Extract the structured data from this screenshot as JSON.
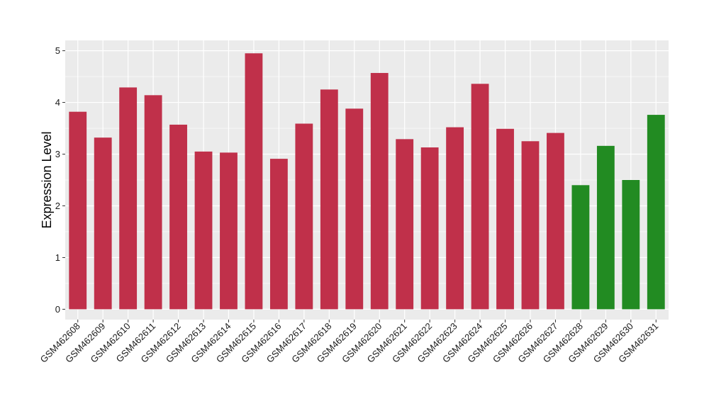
{
  "chart_data": {
    "type": "bar",
    "title": "",
    "xlabel": "",
    "ylabel": "Expression Level",
    "ylim": [
      -0.2,
      5.2
    ],
    "yticks": [
      0,
      1,
      2,
      3,
      4,
      5
    ],
    "grid": true,
    "legend": "none",
    "colors": {
      "group1": "#c0304a",
      "group2": "#228b22",
      "panel": "#ebebeb",
      "grid": "#ffffff"
    },
    "categories": [
      "GSM462608",
      "GSM462609",
      "GSM462610",
      "GSM462611",
      "GSM462612",
      "GSM462613",
      "GSM462614",
      "GSM462615",
      "GSM462616",
      "GSM462617",
      "GSM462618",
      "GSM462619",
      "GSM462620",
      "GSM462621",
      "GSM462622",
      "GSM462623",
      "GSM462624",
      "GSM462625",
      "GSM462626",
      "GSM462627",
      "GSM462628",
      "GSM462629",
      "GSM462630",
      "GSM462631"
    ],
    "values": [
      3.82,
      3.32,
      4.29,
      4.14,
      3.57,
      3.05,
      3.03,
      4.95,
      2.91,
      3.59,
      4.25,
      3.88,
      4.57,
      3.29,
      3.13,
      3.52,
      4.36,
      3.49,
      3.25,
      3.41,
      2.4,
      3.16,
      2.5,
      3.76
    ],
    "groups": [
      "group1",
      "group1",
      "group1",
      "group1",
      "group1",
      "group1",
      "group1",
      "group1",
      "group1",
      "group1",
      "group1",
      "group1",
      "group1",
      "group1",
      "group1",
      "group1",
      "group1",
      "group1",
      "group1",
      "group1",
      "group2",
      "group2",
      "group2",
      "group2"
    ]
  }
}
